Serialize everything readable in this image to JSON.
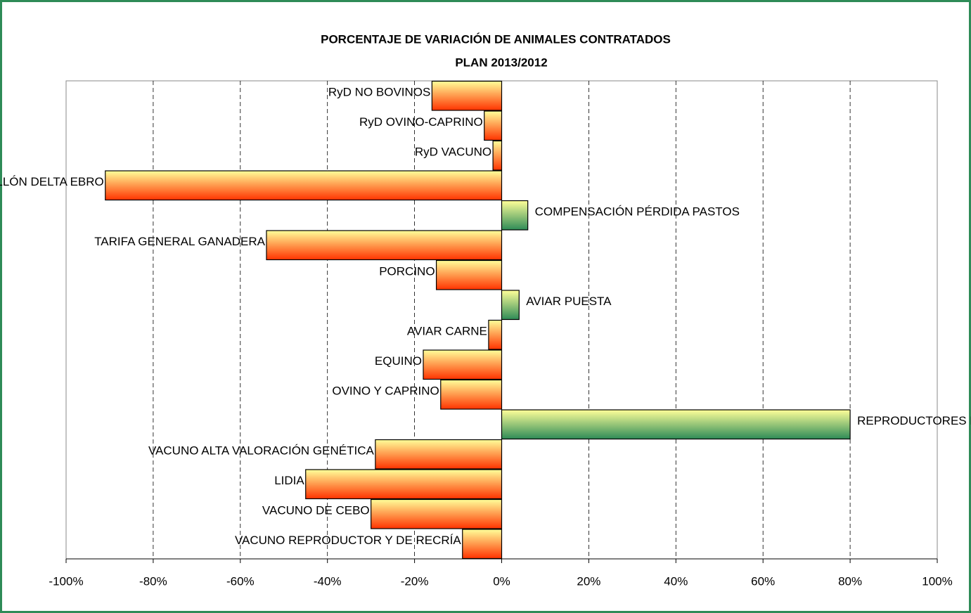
{
  "chart_data": {
    "type": "barh",
    "title": "PORCENTAJE DE VARIACIÓN DE ANIMALES CONTRATADOS",
    "subtitle": "PLAN 2013/2012",
    "categories": [
      "RyD NO BOVINOS",
      "RyD OVINO-CAPRINO",
      "RyD VACUNO",
      "MEJILLÓN DELTA EBRO",
      "COMPENSACIÓN PÉRDIDA PASTOS",
      "TARIFA GENERAL GANADERA",
      "PORCINO",
      "AVIAR PUESTA",
      "AVIAR CARNE",
      "EQUINO",
      "OVINO Y CAPRINO",
      "REPRODUCTORES BOVINOS APTITUD CÁRNICA",
      "VACUNO ALTA VALORACIÓN GENÉTICA",
      "LIDIA",
      "VACUNO DE CEBO",
      "VACUNO REPRODUCTOR Y  DE RECRÍA"
    ],
    "values": [
      -16,
      -4,
      -2,
      -91,
      6,
      -54,
      -15,
      4,
      -3,
      -18,
      -14,
      80,
      -29,
      -45,
      -30,
      -9
    ],
    "colors": {
      "negative": [
        "#ffff99",
        "#ff3300"
      ],
      "positive": [
        "#ffff99",
        "#2e8b57"
      ]
    },
    "xlim": [
      -100,
      100
    ],
    "xticks": [
      {
        "value": -100,
        "label": "-100%"
      },
      {
        "value": -80,
        "label": "-80%"
      },
      {
        "value": -60,
        "label": "-60%"
      },
      {
        "value": -40,
        "label": "-40%"
      },
      {
        "value": -20,
        "label": "-20%"
      },
      {
        "value": 0,
        "label": "0%"
      },
      {
        "value": 20,
        "label": "20%"
      },
      {
        "value": 40,
        "label": "40%"
      },
      {
        "value": 60,
        "label": "60%"
      },
      {
        "value": 80,
        "label": "80%"
      },
      {
        "value": 100,
        "label": "100%"
      }
    ],
    "grid": true
  }
}
